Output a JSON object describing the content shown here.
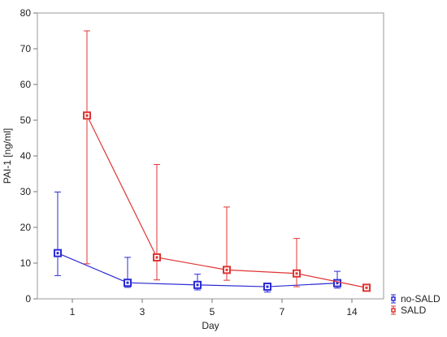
{
  "chart_data": {
    "type": "line",
    "xlabel": "Day",
    "ylabel": "PAI-1 [ng/ml]",
    "categories": [
      "1",
      "3",
      "5",
      "7",
      "14"
    ],
    "ylim": [
      0,
      80
    ],
    "yticks": [
      0,
      10,
      20,
      30,
      40,
      50,
      60,
      70,
      80
    ],
    "legend_position": "bottom-right",
    "grid": false,
    "series": [
      {
        "name": "no-SALD",
        "color": "#2b2bd6",
        "values": [
          12.8,
          4.5,
          3.9,
          3.4,
          4.4
        ],
        "err_low": [
          6.5,
          3.2,
          2.5,
          1.9,
          3.0
        ],
        "err_high": [
          29.9,
          11.6,
          6.9,
          4.4,
          7.7
        ]
      },
      {
        "name": "SALD",
        "color": "#e03434",
        "values": [
          51.3,
          11.6,
          8.1,
          7.1,
          3.1
        ],
        "err_low": [
          9.8,
          5.3,
          5.2,
          3.4,
          2.4
        ],
        "err_high": [
          75.0,
          37.6,
          25.7,
          16.9,
          3.8
        ]
      }
    ]
  }
}
